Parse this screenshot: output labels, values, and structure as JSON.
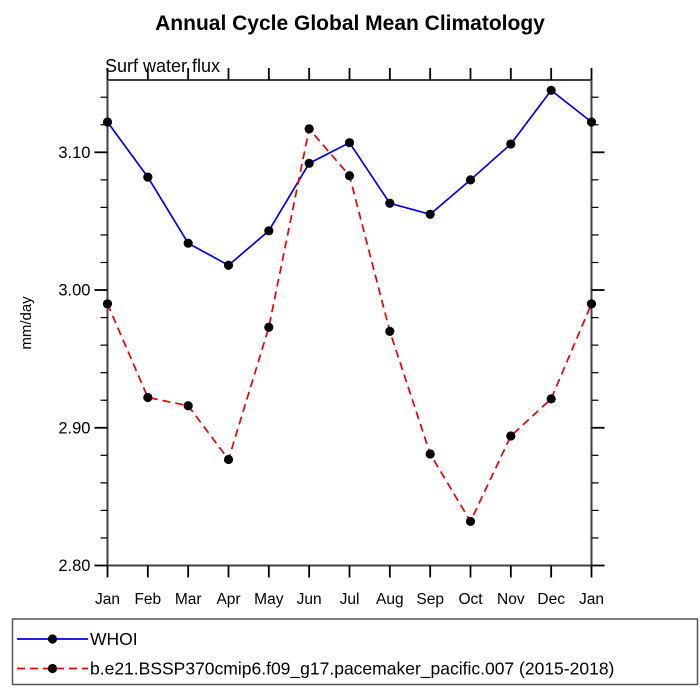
{
  "title": "Annual Cycle Global Mean Climatology",
  "subtitle": "Surf water flux",
  "chart_data": {
    "type": "line",
    "title": "Annual Cycle Global Mean Climatology",
    "subtitle": "Surf water flux",
    "ylabel": "mm/day",
    "xlabel": "",
    "x_categories": [
      "Jan",
      "Feb",
      "Mar",
      "Apr",
      "May",
      "Jun",
      "Jul",
      "Aug",
      "Sep",
      "Oct",
      "Nov",
      "Dec",
      "Jan"
    ],
    "ylim": [
      2.8,
      3.1525
    ],
    "y_major_ticks": [
      2.8,
      2.9,
      3.0,
      3.1
    ],
    "y_minor_tick_step": 0.02,
    "grid": false,
    "legend_position": "bottom-box",
    "axis_color": "#404040",
    "marker": "filled-circle",
    "marker_color": "#000000",
    "series": [
      {
        "name": "WHOI",
        "color": "#0000ee",
        "line_style": "solid",
        "values": [
          3.122,
          3.082,
          3.034,
          3.018,
          3.043,
          3.092,
          3.107,
          3.063,
          3.055,
          3.08,
          3.106,
          3.145,
          3.122
        ]
      },
      {
        "name": "b.e21.BSSP370cmip6.f09_g17.pacemaker_pacific.007 (2015-2018)",
        "color": "#ee0000",
        "line_style": "dashed",
        "values": [
          2.99,
          2.922,
          2.916,
          2.877,
          2.973,
          3.117,
          3.083,
          2.97,
          2.881,
          2.832,
          2.894,
          2.921,
          2.99
        ]
      }
    ]
  }
}
